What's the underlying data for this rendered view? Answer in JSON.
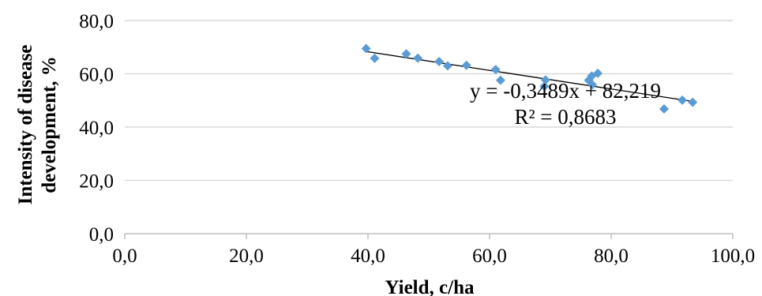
{
  "chart_data": {
    "type": "scatter",
    "xlabel": "Yield, c/ha",
    "ylabel_lines": [
      "Intensity of disease",
      "development, %"
    ],
    "xlim": [
      0,
      100
    ],
    "ylim": [
      0,
      80
    ],
    "x_ticks": [
      "0,0",
      "20,0",
      "40,0",
      "60,0",
      "80,0",
      "100,0"
    ],
    "y_ticks": [
      "0,0",
      "20,0",
      "40,0",
      "60,0",
      "80,0"
    ],
    "grid": "horizontal",
    "series": [
      {
        "points": [
          [
            39.7,
            69.5
          ],
          [
            41.1,
            65.8
          ],
          [
            46.3,
            67.5
          ],
          [
            48.2,
            65.9
          ],
          [
            51.7,
            64.6
          ],
          [
            53.1,
            63.0
          ],
          [
            56.2,
            63.2
          ],
          [
            61.0,
            61.6
          ],
          [
            61.8,
            57.6
          ],
          [
            69.2,
            57.7
          ],
          [
            69.0,
            55.3
          ],
          [
            76.3,
            57.6
          ],
          [
            76.8,
            59.2
          ],
          [
            77.8,
            60.2
          ],
          [
            76.9,
            55.9
          ],
          [
            88.7,
            46.8
          ],
          [
            91.7,
            50.1
          ],
          [
            93.4,
            49.3
          ]
        ],
        "color": "#5b9bd5",
        "marker": "diamond"
      }
    ],
    "trendline": {
      "slope": -0.3489,
      "intercept": 82.219,
      "x_range": [
        39.7,
        93.4
      ],
      "equation": "y = -0,3489x + 82,219",
      "r_squared": "R² = 0,8683",
      "color": "#000000"
    }
  }
}
